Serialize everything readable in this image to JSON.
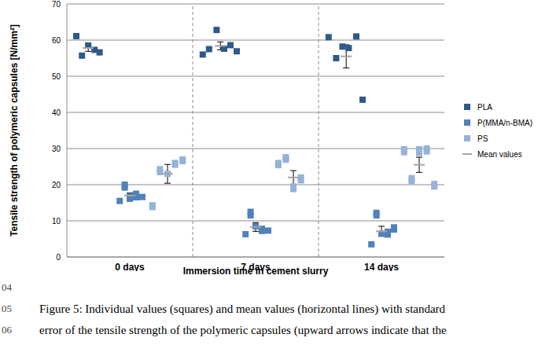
{
  "chart_data": {
    "type": "scatter",
    "y_label": "Tensile strength of polymeric capsules [N/mm²]",
    "x_label": "Immersion time in cement slurry",
    "xlim": [
      0,
      3
    ],
    "xticks": [
      {
        "value": 0.5,
        "label": "0 days"
      },
      {
        "value": 1.5,
        "label": "7 days"
      },
      {
        "value": 2.5,
        "label": "14 days"
      }
    ],
    "ylim": [
      0,
      70
    ],
    "yticks": [
      0,
      10,
      20,
      30,
      40,
      50,
      60,
      70
    ],
    "grid": true,
    "legend": "right",
    "series": [
      {
        "name": "PLA",
        "color": "#2e5a88",
        "marker": "square",
        "x": [
          0.075,
          0.12,
          0.17,
          0.22,
          0.26,
          1.08,
          1.13,
          1.19,
          1.25,
          1.3,
          1.35,
          2.08,
          2.14,
          2.19,
          2.24,
          2.3,
          2.35
        ],
        "values": [
          61.1,
          55.7,
          58.5,
          57.3,
          56.6,
          56.0,
          57.5,
          62.8,
          57.6,
          58.6,
          56.9,
          60.8,
          55.0,
          58.2,
          57.8,
          61.0,
          43.5
        ]
      },
      {
        "name": "P(MMA/n-BMA)",
        "color": "#4f81bd",
        "marker": "square",
        "x": [
          0.42,
          0.46,
          0.46,
          0.5,
          0.5,
          0.55,
          0.55,
          0.6,
          1.42,
          1.46,
          1.46,
          1.5,
          1.55,
          1.55,
          1.6,
          2.42,
          2.46,
          2.46,
          2.5,
          2.55,
          2.55,
          2.6,
          2.6
        ],
        "values": [
          15.5,
          20.0,
          19.2,
          16.8,
          16.1,
          17.5,
          16.5,
          16.6,
          6.3,
          12.5,
          11.5,
          8.5,
          7.2,
          7.8,
          7.3,
          3.5,
          12.2,
          11.5,
          6.5,
          6.2,
          7.0,
          8.2,
          7.6
        ]
      },
      {
        "name": "PS",
        "color": "#95b3d7",
        "marker": "square",
        "x": [
          0.68,
          0.68,
          0.74,
          0.74,
          0.8,
          0.86,
          0.86,
          0.92,
          0.92,
          1.68,
          1.68,
          1.74,
          1.74,
          1.8,
          1.8,
          1.86,
          1.86,
          2.68,
          2.68,
          2.74,
          2.74,
          2.8,
          2.8,
          2.86,
          2.86,
          2.92,
          2.92
        ],
        "values": [
          14.3,
          13.8,
          24.3,
          23.5,
          23.0,
          26.0,
          25.5,
          27.0,
          26.5,
          26.0,
          25.4,
          27.6,
          26.9,
          19.5,
          18.8,
          22.0,
          21.2,
          29.8,
          29.0,
          21.8,
          21.0,
          29.8,
          28.8,
          30.0,
          29.2,
          20.2,
          19.5
        ]
      },
      {
        "name": "Mean values",
        "type": "mean",
        "color": "#a5a5a5",
        "marker": "line",
        "x": [
          0.17,
          0.5,
          0.8,
          1.22,
          1.5,
          1.8,
          2.22,
          2.5,
          2.8
        ],
        "values": [
          57.8,
          17.0,
          23.0,
          58.4,
          8.3,
          22.0,
          55.5,
          7.1,
          25.5
        ],
        "error": [
          0.9,
          0.7,
          2.6,
          1.1,
          1.2,
          1.9,
          3.2,
          1.4,
          2.1
        ]
      }
    ]
  },
  "caption": {
    "line_numbers": [
      "04",
      "05",
      "06"
    ],
    "lines": [
      "Figure 5: Individual values (squares) and mean values (horizontal lines) with standard",
      "error of the tensile strength of the polymeric capsules (upward arrows indicate that the"
    ]
  }
}
